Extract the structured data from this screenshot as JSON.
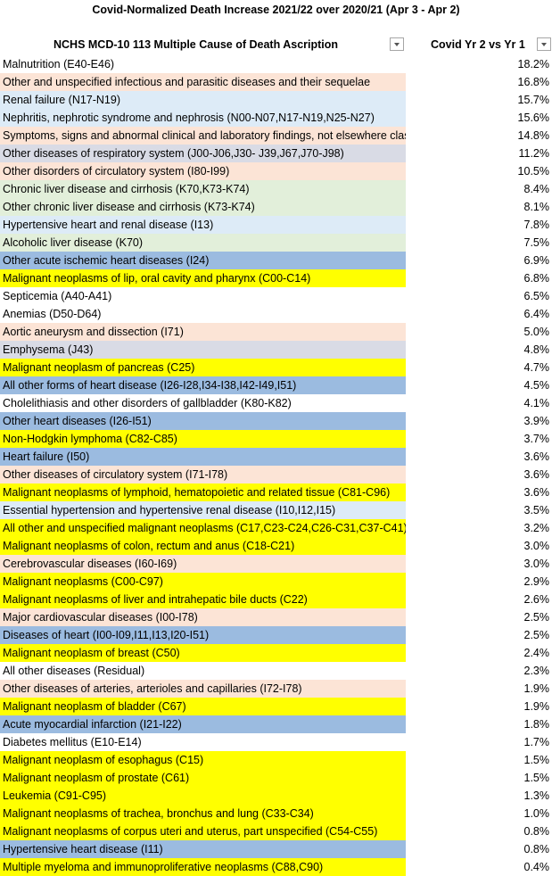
{
  "title": "Covid-Normalized Death Increase 2021/22 over 2020/21 (Apr 3 - Apr 2)",
  "columns": {
    "cause": "NCHS MCD-10 113 Multiple Cause of Death Ascription",
    "value": "Covid Yr 2 vs Yr 1"
  },
  "colors": {
    "peach": "#fce4d6",
    "lightblue": "#ddebf7",
    "gray": "#d9dbe5",
    "green": "#e2efda",
    "blue": "#9bbbe0",
    "yellow": "#ffff00",
    "none": "#ffffff"
  },
  "rows": [
    {
      "cause": "Malnutrition (E40-E46)",
      "value": "18.2%",
      "color": "none"
    },
    {
      "cause": "Other and unspecified infectious and parasitic diseases and their sequelae",
      "value": "16.8%",
      "color": "peach"
    },
    {
      "cause": "Renal failure (N17-N19)",
      "value": "15.7%",
      "color": "lightblue"
    },
    {
      "cause": "Nephritis, nephrotic syndrome and nephrosis (N00-N07,N17-N19,N25-N27)",
      "value": "15.6%",
      "color": "lightblue"
    },
    {
      "cause": "Symptoms, signs and abnormal clinical and laboratory findings, not elsewhere classified",
      "value": "14.8%",
      "color": "peach"
    },
    {
      "cause": "Other diseases of respiratory system (J00-J06,J30- J39,J67,J70-J98)",
      "value": "11.2%",
      "color": "gray"
    },
    {
      "cause": "Other disorders of circulatory system (I80-I99)",
      "value": "10.5%",
      "color": "peach"
    },
    {
      "cause": "Chronic liver disease and cirrhosis (K70,K73-K74)",
      "value": "8.4%",
      "color": "green"
    },
    {
      "cause": "Other chronic liver disease and cirrhosis (K73-K74)",
      "value": "8.1%",
      "color": "green"
    },
    {
      "cause": "Hypertensive heart and renal disease (I13)",
      "value": "7.8%",
      "color": "lightblue"
    },
    {
      "cause": "Alcoholic liver disease (K70)",
      "value": "7.5%",
      "color": "green"
    },
    {
      "cause": "Other acute ischemic heart diseases (I24)",
      "value": "6.9%",
      "color": "blue"
    },
    {
      "cause": "Malignant neoplasms of lip, oral cavity and pharynx (C00-C14)",
      "value": "6.8%",
      "color": "yellow"
    },
    {
      "cause": "Septicemia (A40-A41)",
      "value": "6.5%",
      "color": "none"
    },
    {
      "cause": "Anemias (D50-D64)",
      "value": "6.4%",
      "color": "none"
    },
    {
      "cause": "Aortic aneurysm and dissection (I71)",
      "value": "5.0%",
      "color": "peach"
    },
    {
      "cause": "Emphysema (J43)",
      "value": "4.8%",
      "color": "gray"
    },
    {
      "cause": "Malignant neoplasm of pancreas (C25)",
      "value": "4.7%",
      "color": "yellow"
    },
    {
      "cause": "All other forms of heart disease (I26-I28,I34-I38,I42-I49,I51)",
      "value": "4.5%",
      "color": "blue"
    },
    {
      "cause": "Cholelithiasis and other disorders of gallbladder (K80-K82)",
      "value": "4.1%",
      "color": "none"
    },
    {
      "cause": "Other heart diseases (I26-I51)",
      "value": "3.9%",
      "color": "blue"
    },
    {
      "cause": "Non-Hodgkin lymphoma (C82-C85)",
      "value": "3.7%",
      "color": "yellow"
    },
    {
      "cause": "Heart failure (I50)",
      "value": "3.6%",
      "color": "blue"
    },
    {
      "cause": "Other diseases of circulatory system (I71-I78)",
      "value": "3.6%",
      "color": "peach"
    },
    {
      "cause": "Malignant neoplasms of lymphoid, hematopoietic and related tissue (C81-C96)",
      "value": "3.6%",
      "color": "yellow"
    },
    {
      "cause": "Essential hypertension and hypertensive renal disease (I10,I12,I15)",
      "value": "3.5%",
      "color": "lightblue"
    },
    {
      "cause": "All other and unspecified malignant neoplasms (C17,C23-C24,C26-C31,C37-C41)",
      "value": "3.2%",
      "color": "yellow"
    },
    {
      "cause": "Malignant neoplasms of colon, rectum and anus (C18-C21)",
      "value": "3.0%",
      "color": "yellow"
    },
    {
      "cause": "Cerebrovascular diseases (I60-I69)",
      "value": "3.0%",
      "color": "peach"
    },
    {
      "cause": "Malignant neoplasms (C00-C97)",
      "value": "2.9%",
      "color": "yellow"
    },
    {
      "cause": "Malignant neoplasms of liver and intrahepatic bile ducts (C22)",
      "value": "2.6%",
      "color": "yellow"
    },
    {
      "cause": "Major cardiovascular diseases (I00-I78)",
      "value": "2.5%",
      "color": "peach"
    },
    {
      "cause": "Diseases of heart (I00-I09,I11,I13,I20-I51)",
      "value": "2.5%",
      "color": "blue"
    },
    {
      "cause": "Malignant neoplasm of breast (C50)",
      "value": "2.4%",
      "color": "yellow"
    },
    {
      "cause": "All other diseases (Residual)",
      "value": "2.3%",
      "color": "none"
    },
    {
      "cause": "Other diseases of arteries, arterioles and capillaries (I72-I78)",
      "value": "1.9%",
      "color": "peach"
    },
    {
      "cause": "Malignant neoplasm of bladder (C67)",
      "value": "1.9%",
      "color": "yellow"
    },
    {
      "cause": "Acute myocardial infarction (I21-I22)",
      "value": "1.8%",
      "color": "blue"
    },
    {
      "cause": "Diabetes mellitus (E10-E14)",
      "value": "1.7%",
      "color": "none"
    },
    {
      "cause": "Malignant neoplasm of esophagus (C15)",
      "value": "1.5%",
      "color": "yellow"
    },
    {
      "cause": "Malignant neoplasm of prostate (C61)",
      "value": "1.5%",
      "color": "yellow"
    },
    {
      "cause": "Leukemia (C91-C95)",
      "value": "1.3%",
      "color": "yellow"
    },
    {
      "cause": "Malignant neoplasms of trachea, bronchus and lung (C33-C34)",
      "value": "1.0%",
      "color": "yellow"
    },
    {
      "cause": "Malignant neoplasms of corpus uteri and uterus, part unspecified (C54-C55)",
      "value": "0.8%",
      "color": "yellow"
    },
    {
      "cause": "Hypertensive heart disease (I11)",
      "value": "0.8%",
      "color": "blue"
    },
    {
      "cause": "Multiple myeloma and immunoproliferative neoplasms (C88,C90)",
      "value": "0.4%",
      "color": "yellow"
    }
  ]
}
